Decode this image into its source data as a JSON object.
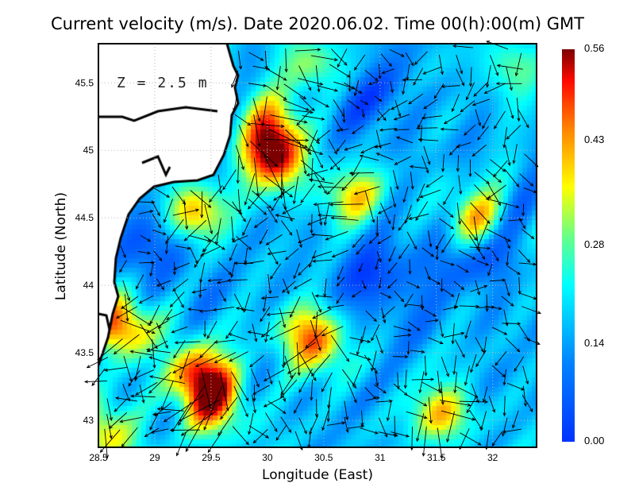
{
  "title": "Current velocity (m/s). Date 2020.06.02. Time 00(h):00(m) GMT",
  "annotation": "Z = 2.5 m",
  "chart_data": {
    "type": "heatmap",
    "title": "Current velocity (m/s). Date 2020.06.02. Time 00(h):00(m) GMT",
    "xlabel": "Longitude (East)",
    "ylabel": "Latitude (North)",
    "xlim": [
      28.5,
      32.39
    ],
    "ylim": [
      42.8,
      45.79
    ],
    "xticks": [
      "28.5",
      "29",
      "29.5",
      "30",
      "30.5",
      "31",
      "31.5",
      "32"
    ],
    "yticks": [
      "43",
      "43.5",
      "44",
      "44.5",
      "45",
      "45.5"
    ],
    "grid": true,
    "colorbar": {
      "min": 0.0,
      "max": 0.56,
      "ticks": [
        "0.00",
        "0.14",
        "0.28",
        "0.43",
        "0.56"
      ],
      "placement": "right",
      "colormap": "jet"
    },
    "depth_label": "Z = 2.5 m",
    "speed_hotspots": [
      {
        "lon": 30.07,
        "lat": 44.94,
        "speed": 0.55
      },
      {
        "lon": 28.68,
        "lat": 43.71,
        "speed": 0.5
      },
      {
        "lon": 29.38,
        "lat": 43.35,
        "speed": 0.52
      },
      {
        "lon": 30.4,
        "lat": 43.6,
        "speed": 0.5
      },
      {
        "lon": 31.83,
        "lat": 44.5,
        "speed": 0.45
      },
      {
        "lon": 30.78,
        "lat": 44.65,
        "speed": 0.38
      },
      {
        "lon": 30.0,
        "lat": 45.22,
        "speed": 0.4
      },
      {
        "lon": 31.55,
        "lat": 43.05,
        "speed": 0.4
      },
      {
        "lon": 29.55,
        "lat": 43.1,
        "speed": 0.45
      },
      {
        "lon": 28.55,
        "lat": 42.9,
        "speed": 0.42
      },
      {
        "lon": 29.35,
        "lat": 44.53,
        "speed": 0.45
      },
      {
        "lon": 30.4,
        "lat": 45.65,
        "speed": 0.35
      },
      {
        "lon": 32.2,
        "lat": 45.6,
        "speed": 0.3
      }
    ],
    "speed_lows": [
      {
        "lon": 31.0,
        "lat": 44.05,
        "speed": 0.04
      },
      {
        "lon": 31.85,
        "lat": 44.3,
        "speed": 0.04
      },
      {
        "lon": 29.05,
        "lat": 44.3,
        "speed": 0.05
      },
      {
        "lon": 30.85,
        "lat": 45.4,
        "speed": 0.07
      }
    ],
    "prevailing_flow": "southward"
  }
}
